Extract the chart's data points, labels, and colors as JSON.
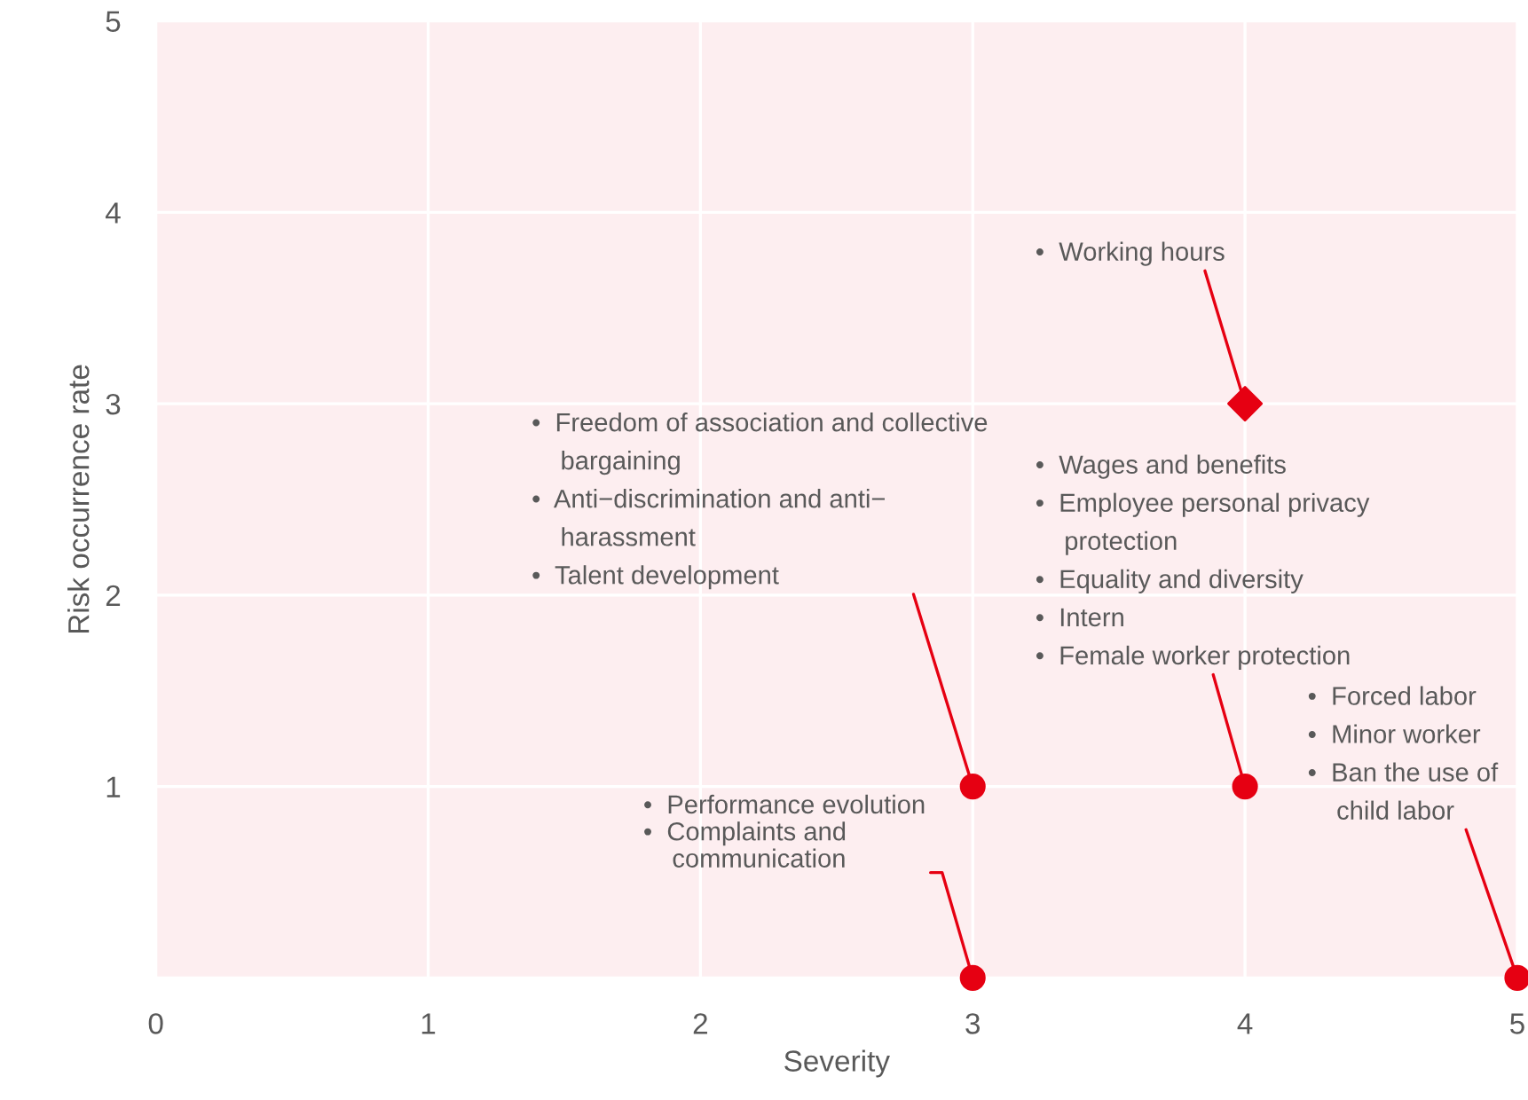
{
  "chart_data": {
    "type": "scatter",
    "xlabel": "Severity",
    "ylabel": "Risk occurrence rate",
    "xlim": [
      0,
      5
    ],
    "ylim": [
      0,
      5
    ],
    "xticks": [
      0,
      1,
      2,
      3,
      4,
      5
    ],
    "yticks": [
      {
        "value": 0,
        "label": null
      },
      1,
      2,
      3,
      4,
      5
    ],
    "grid": true,
    "series": [
      {
        "color": "#e60012",
        "marker": "circle",
        "x": [
          3,
          4,
          3,
          5
        ],
        "values": [
          1,
          1,
          0,
          0
        ]
      },
      {
        "color": "#e60012",
        "marker": "diamond",
        "x": [
          4
        ],
        "values": [
          3
        ]
      }
    ],
    "annotations": [
      {
        "text": "•  Freedom of association and collective\n    bargaining\n•  Anti−discrimination and anti−\n    harassment\n•  Talent development",
        "x": 3,
        "y": 1
      },
      {
        "text": "•  Working hours",
        "x": 4,
        "y": 3
      },
      {
        "text": "•  Wages and benefits\n•  Employee personal privacy\n    protection\n•  Equality and diversity\n•  Intern\n•  Female worker protection",
        "x": 4,
        "y": 1
      },
      {
        "text": "•  Performance evolution\n•  Complaints and\n    communication",
        "x": 3,
        "y": 0
      },
      {
        "text": "•  Forced labor\n•  Minor worker\n•  Ban the use of\n    child labor",
        "x": 5,
        "y": 0
      }
    ]
  }
}
